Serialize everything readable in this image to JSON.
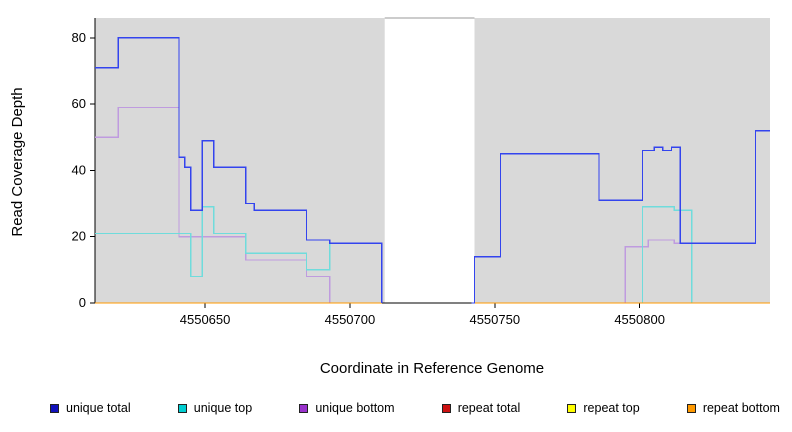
{
  "chart_data": {
    "type": "line",
    "style": "step",
    "title": "",
    "xlabel": "Coordinate in Reference Genome",
    "ylabel": "Read Coverage Depth",
    "xlim": [
      4550612,
      4550845
    ],
    "ylim": [
      0,
      86
    ],
    "xticks": [
      4550650,
      4550700,
      4550750,
      4550800
    ],
    "yticks": [
      0,
      20,
      40,
      60,
      80
    ],
    "grid": false,
    "plot_background": "#d9d9d9",
    "gap_region": {
      "x0": 4550712,
      "x1": 4550743,
      "fill": "#ffffff",
      "edge": "#9a9a9a"
    },
    "series": [
      {
        "name": "unique bottom",
        "color": "#bf9bdf",
        "points": [
          [
            4550612,
            50
          ],
          [
            4550620,
            59
          ],
          [
            4550641,
            20
          ],
          [
            4550664,
            13
          ],
          [
            4550685,
            8
          ],
          [
            4550693,
            0
          ],
          [
            4550711,
            0
          ],
          [
            4550712,
            null
          ],
          [
            4550742,
            0
          ],
          [
            4550795,
            17
          ],
          [
            4550803,
            19
          ],
          [
            4550812,
            18
          ],
          [
            4550840,
            52
          ],
          [
            4550845,
            52
          ]
        ]
      },
      {
        "name": "unique top",
        "color": "#6fdcdc",
        "points": [
          [
            4550612,
            21
          ],
          [
            4550645,
            8
          ],
          [
            4550649,
            29
          ],
          [
            4550653,
            21
          ],
          [
            4550664,
            15
          ],
          [
            4550685,
            10
          ],
          [
            4550693,
            18
          ],
          [
            4550711,
            0
          ],
          [
            4550712,
            null
          ],
          [
            4550742,
            0
          ],
          [
            4550801,
            29
          ],
          [
            4550812,
            28
          ],
          [
            4550818,
            0
          ],
          [
            4550845,
            0
          ]
        ]
      },
      {
        "name": "repeat total",
        "color": "#cc1111",
        "points": [
          [
            4550612,
            0
          ],
          [
            4550711,
            0
          ],
          [
            4550712,
            null
          ],
          [
            4550742,
            0
          ],
          [
            4550845,
            0
          ]
        ]
      },
      {
        "name": "repeat top",
        "color": "#ffff00",
        "points": [
          [
            4550612,
            0
          ],
          [
            4550711,
            0
          ],
          [
            4550712,
            null
          ],
          [
            4550742,
            0
          ],
          [
            4550845,
            0
          ]
        ]
      },
      {
        "name": "repeat bottom",
        "color": "#ff9900",
        "points": [
          [
            4550612,
            0
          ],
          [
            4550711,
            0
          ],
          [
            4550712,
            null
          ],
          [
            4550742,
            0
          ],
          [
            4550845,
            0
          ]
        ]
      },
      {
        "name": "unique total",
        "color": "#3344ee",
        "points": [
          [
            4550612,
            71
          ],
          [
            4550620,
            80
          ],
          [
            4550641,
            44
          ],
          [
            4550643,
            41
          ],
          [
            4550645,
            28
          ],
          [
            4550649,
            49
          ],
          [
            4550653,
            41
          ],
          [
            4550664,
            30
          ],
          [
            4550667,
            28
          ],
          [
            4550685,
            19
          ],
          [
            4550693,
            18
          ],
          [
            4550711,
            0
          ],
          [
            4550712,
            null
          ],
          [
            4550742,
            0
          ],
          [
            4550743,
            14
          ],
          [
            4550752,
            45
          ],
          [
            4550786,
            31
          ],
          [
            4550801,
            46
          ],
          [
            4550805,
            47
          ],
          [
            4550808,
            46
          ],
          [
            4550811,
            47
          ],
          [
            4550814,
            18
          ],
          [
            4550840,
            52
          ],
          [
            4550845,
            52
          ]
        ]
      }
    ],
    "legend": [
      {
        "label": "unique total",
        "color": "#1111bb"
      },
      {
        "label": "unique top",
        "color": "#00CED1"
      },
      {
        "label": "unique bottom",
        "color": "#9932CC"
      },
      {
        "label": "repeat total",
        "color": "#CC1111"
      },
      {
        "label": "repeat top",
        "color": "#FFFF00"
      },
      {
        "label": "repeat bottom",
        "color": "#FF9900"
      }
    ]
  }
}
